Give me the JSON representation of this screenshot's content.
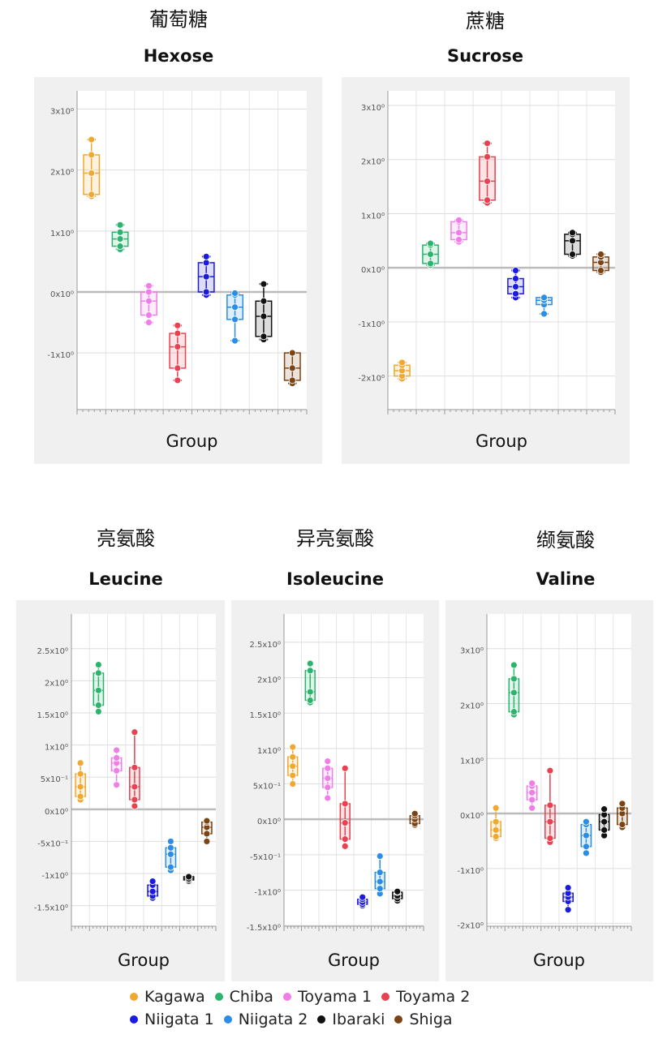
{
  "chart_data": [
    {
      "type": "box",
      "title": "葡萄糖",
      "subtitle": "Hexose",
      "x_label": "Group",
      "ylim": [
        -1.93,
        3.3
      ],
      "yticks": [
        {
          "value": 3,
          "label": "3x10⁰"
        },
        {
          "value": 2,
          "label": "2x10⁰"
        },
        {
          "value": 1,
          "label": "1x10⁰"
        },
        {
          "value": 0,
          "label": "0x10⁰"
        },
        {
          "value": -1,
          "label": "-1x10⁰"
        }
      ],
      "values": [
        [
          1.57,
          1.6,
          1.95,
          2.25,
          2.5
        ],
        [
          0.7,
          0.75,
          0.87,
          0.98,
          1.1
        ],
        [
          -0.5,
          -0.38,
          -0.15,
          0,
          0.1
        ],
        [
          -1.45,
          -1.25,
          -0.9,
          -0.68,
          -0.55
        ],
        [
          -0.05,
          0,
          0.25,
          0.48,
          0.58
        ],
        [
          -0.8,
          -0.45,
          -0.25,
          -0.05,
          -0.02
        ],
        [
          -0.78,
          -0.73,
          -0.4,
          -0.15,
          0.13
        ],
        [
          -1.5,
          -1.45,
          -1.25,
          -1.0,
          -1.0
        ]
      ]
    },
    {
      "type": "box",
      "title": "蔗糖",
      "subtitle": "Sucrose",
      "x_label": "Group",
      "ylim": [
        -2.62,
        3.27
      ],
      "yticks": [
        {
          "value": 3,
          "label": "3x10⁰"
        },
        {
          "value": 2,
          "label": "2x10⁰"
        },
        {
          "value": 1,
          "label": "1x10⁰"
        },
        {
          "value": 0,
          "label": "0x10⁰"
        },
        {
          "value": -1,
          "label": "-1x10⁰"
        },
        {
          "value": -2,
          "label": "-2x10⁰"
        }
      ],
      "values": [
        [
          -2.05,
          -2.0,
          -1.9,
          -1.8,
          -1.75
        ],
        [
          0.05,
          0.08,
          0.25,
          0.42,
          0.45
        ],
        [
          0.48,
          0.52,
          0.65,
          0.85,
          0.88
        ],
        [
          1.2,
          1.25,
          1.6,
          2.05,
          2.3
        ],
        [
          -0.55,
          -0.48,
          -0.35,
          -0.2,
          -0.05
        ],
        [
          -0.85,
          -0.68,
          -0.6,
          -0.55,
          -0.55
        ],
        [
          0.22,
          0.25,
          0.5,
          0.62,
          0.65
        ],
        [
          -0.08,
          -0.05,
          0.1,
          0.2,
          0.25
        ]
      ]
    },
    {
      "type": "box",
      "title": "亮氨酸",
      "subtitle": "Leucine",
      "x_label": "Group",
      "ylim": [
        -1.82,
        3.04
      ],
      "yticks": [
        {
          "value": 2.5,
          "label": "2.5x10⁰"
        },
        {
          "value": 2,
          "label": "2x10⁰"
        },
        {
          "value": 1.5,
          "label": "1.5x10⁰"
        },
        {
          "value": 1,
          "label": "1x10⁰"
        },
        {
          "value": 0.5,
          "label": "5x10⁻¹"
        },
        {
          "value": 0,
          "label": "0x10⁰"
        },
        {
          "value": -0.5,
          "label": "-5x10⁻¹"
        },
        {
          "value": -1,
          "label": "-1x10⁰"
        },
        {
          "value": -1.5,
          "label": "-1.5x10⁰"
        }
      ],
      "values": [
        [
          0.15,
          0.2,
          0.35,
          0.55,
          0.72
        ],
        [
          1.52,
          1.62,
          1.85,
          2.12,
          2.25
        ],
        [
          0.38,
          0.6,
          0.72,
          0.8,
          0.92
        ],
        [
          0.05,
          0.15,
          0.35,
          0.65,
          1.2
        ],
        [
          -1.38,
          -1.35,
          -1.28,
          -1.18,
          -1.12
        ],
        [
          -0.95,
          -0.9,
          -0.7,
          -0.6,
          -0.5
        ],
        [
          -1.12,
          -1.1,
          -1.08,
          -1.05,
          -1.05
        ],
        [
          -0.5,
          -0.38,
          -0.28,
          -0.2,
          -0.18
        ]
      ]
    },
    {
      "type": "box",
      "title": "异亮氨酸",
      "subtitle": "Isoleucine",
      "x_label": "Group",
      "ylim": [
        -1.51,
        2.9
      ],
      "yticks": [
        {
          "value": 2.5,
          "label": "2.5x10⁰"
        },
        {
          "value": 2,
          "label": "2x10⁰"
        },
        {
          "value": 1.5,
          "label": "1.5x10⁰"
        },
        {
          "value": 1,
          "label": "1x10⁰"
        },
        {
          "value": 0.5,
          "label": "5x10⁻¹"
        },
        {
          "value": 0,
          "label": "0x10⁰"
        },
        {
          "value": -0.5,
          "label": "-5x10⁻¹"
        },
        {
          "value": -1,
          "label": "-1x10⁰"
        },
        {
          "value": -1.5,
          "label": "-1.5x10⁰"
        }
      ],
      "values": [
        [
          0.5,
          0.62,
          0.75,
          0.88,
          1.02
        ],
        [
          1.65,
          1.68,
          1.8,
          2.1,
          2.2
        ],
        [
          0.3,
          0.45,
          0.58,
          0.72,
          0.82
        ],
        [
          -0.38,
          -0.28,
          -0.05,
          0.22,
          0.72
        ],
        [
          -1.22,
          -1.2,
          -1.17,
          -1.13,
          -1.1
        ],
        [
          -1.05,
          -0.98,
          -0.88,
          -0.75,
          -0.52
        ],
        [
          -1.15,
          -1.12,
          -1.08,
          -1.03,
          -1.02
        ],
        [
          -0.08,
          -0.06,
          0,
          0.05,
          0.08
        ]
      ]
    },
    {
      "type": "box",
      "title": "缬氨酸",
      "subtitle": "Valine",
      "x_label": "Group",
      "ylim": [
        -2.05,
        3.63
      ],
      "yticks": [
        {
          "value": 3,
          "label": "3x10⁰"
        },
        {
          "value": 2,
          "label": "2x10⁰"
        },
        {
          "value": 1,
          "label": "1x10⁰"
        },
        {
          "value": 0,
          "label": "0x10⁰"
        },
        {
          "value": -1,
          "label": "-1x10⁰"
        },
        {
          "value": -2,
          "label": "-2x10⁰"
        }
      ],
      "values": [
        [
          -0.45,
          -0.42,
          -0.3,
          -0.15,
          0.1
        ],
        [
          1.8,
          1.85,
          2.2,
          2.45,
          2.7
        ],
        [
          0.1,
          0.25,
          0.38,
          0.5,
          0.55
        ],
        [
          -0.52,
          -0.45,
          -0.15,
          0.15,
          0.78
        ],
        [
          -1.75,
          -1.6,
          -1.52,
          -1.45,
          -1.35
        ],
        [
          -0.72,
          -0.6,
          -0.4,
          -0.2,
          -0.15
        ],
        [
          -0.4,
          -0.3,
          -0.15,
          -0.02,
          0.08
        ],
        [
          -0.25,
          -0.2,
          0,
          0.1,
          0.18
        ]
      ]
    }
  ],
  "legend": [
    {
      "name": "Kagawa",
      "color": "#f0a830"
    },
    {
      "name": "Chiba",
      "color": "#2cb46e"
    },
    {
      "name": "Toyama 1",
      "color": "#f07ee8"
    },
    {
      "name": "Toyama 2",
      "color": "#e8414f"
    },
    {
      "name": "Niigata 1",
      "color": "#1a1ae0"
    },
    {
      "name": "Niigata 2",
      "color": "#2a8ee8"
    },
    {
      "name": "Ibaraki",
      "color": "#111111"
    },
    {
      "name": "Shiga",
      "color": "#7a4414"
    }
  ]
}
